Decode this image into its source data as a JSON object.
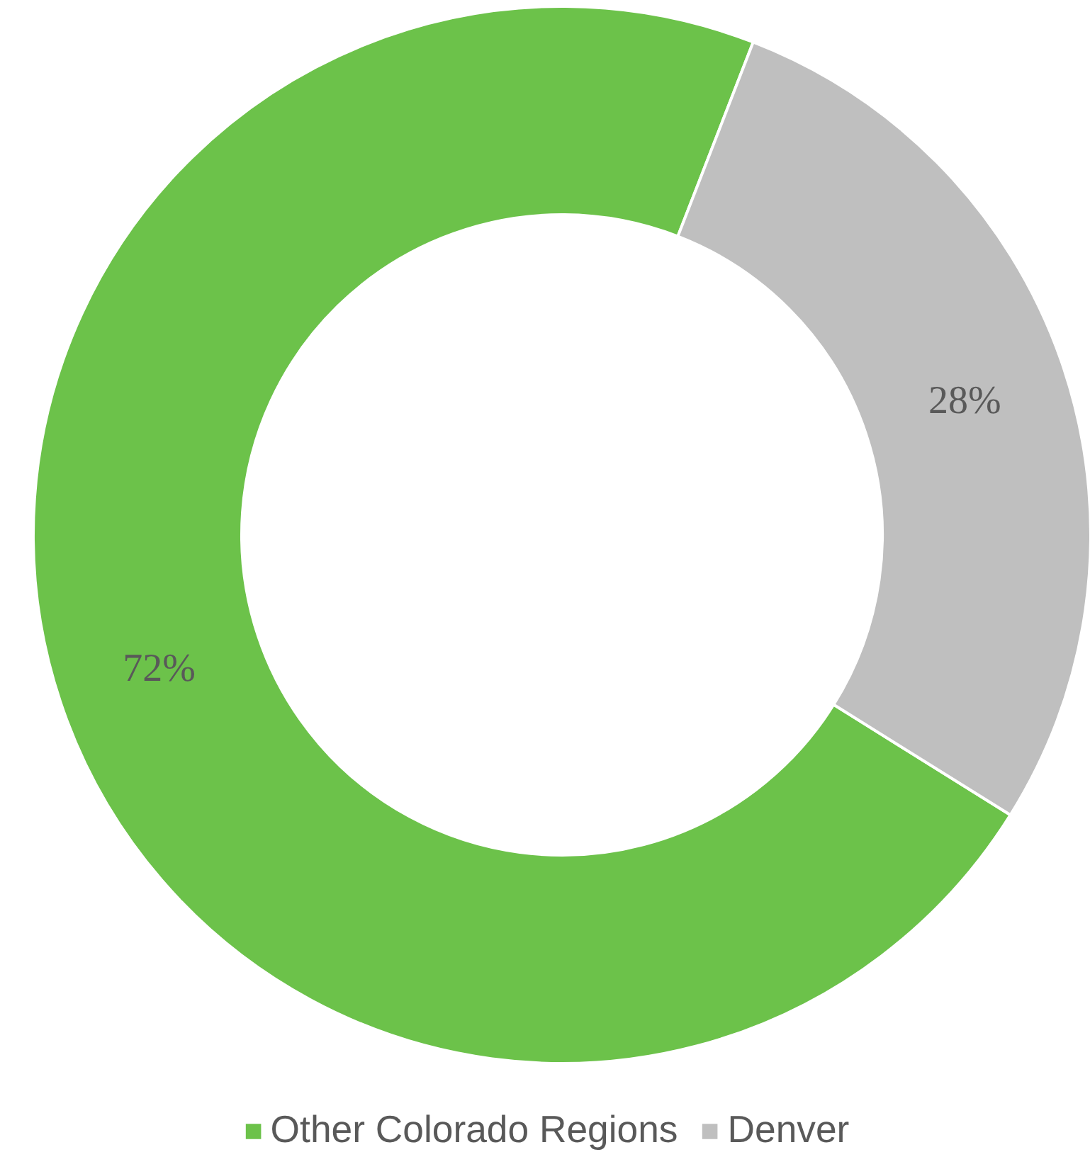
{
  "chart_data": {
    "type": "donut",
    "categories": [
      "Other Colorado Regions",
      "Denver"
    ],
    "values": [
      72,
      28
    ],
    "colors": [
      "#6cc24a",
      "#bfbfbf"
    ],
    "value_labels": [
      "72%",
      "28%"
    ],
    "legend": "bottom"
  }
}
